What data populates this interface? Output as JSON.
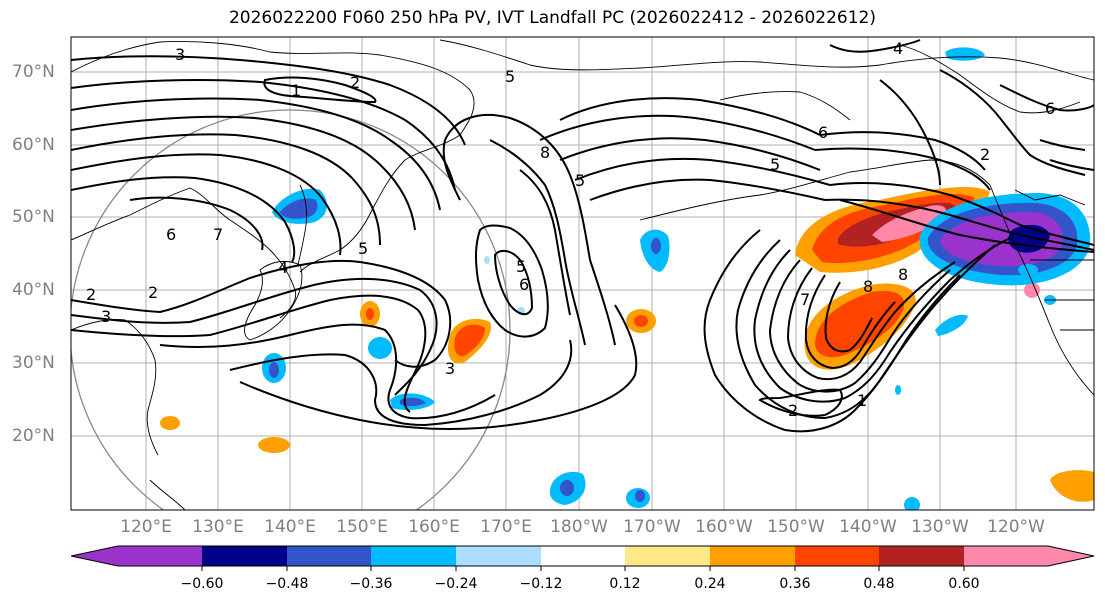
{
  "title": "2026022200 F060 250 hPa PV, IVT Landfall PC (2026022412 - 2026022612)",
  "lat_labels": [
    "70°N",
    "60°N",
    "50°N",
    "40°N",
    "30°N",
    "20°N"
  ],
  "lon_labels": [
    "120°E",
    "130°E",
    "140°E",
    "150°E",
    "160°E",
    "170°E",
    "180°W",
    "170°W",
    "160°W",
    "150°W",
    "140°W",
    "130°W",
    "120°W"
  ],
  "colorbar": {
    "ticks": [
      "−0.60",
      "−0.48",
      "−0.36",
      "−0.24",
      "−0.12",
      "0.12",
      "0.24",
      "0.36",
      "0.48",
      "0.60"
    ],
    "colors": [
      "#9933cc",
      "#000088",
      "#3355cc",
      "#00bbff",
      "#aaddff",
      "#ffffff",
      "#ffe888",
      "#ffa000",
      "#ff4400",
      "#b22222",
      "#ff88aa"
    ]
  },
  "contour_labels": [
    "1",
    "2",
    "3",
    "4",
    "5",
    "6",
    "7",
    "8"
  ],
  "field_colors": {
    "negative_strong": "#9933cc",
    "negative_mid": "#3355cc",
    "negative_weak": "#00bbff",
    "positive_weak": "#ffa000",
    "positive_mid": "#ff4400",
    "positive_strong": "#ff88aa"
  }
}
